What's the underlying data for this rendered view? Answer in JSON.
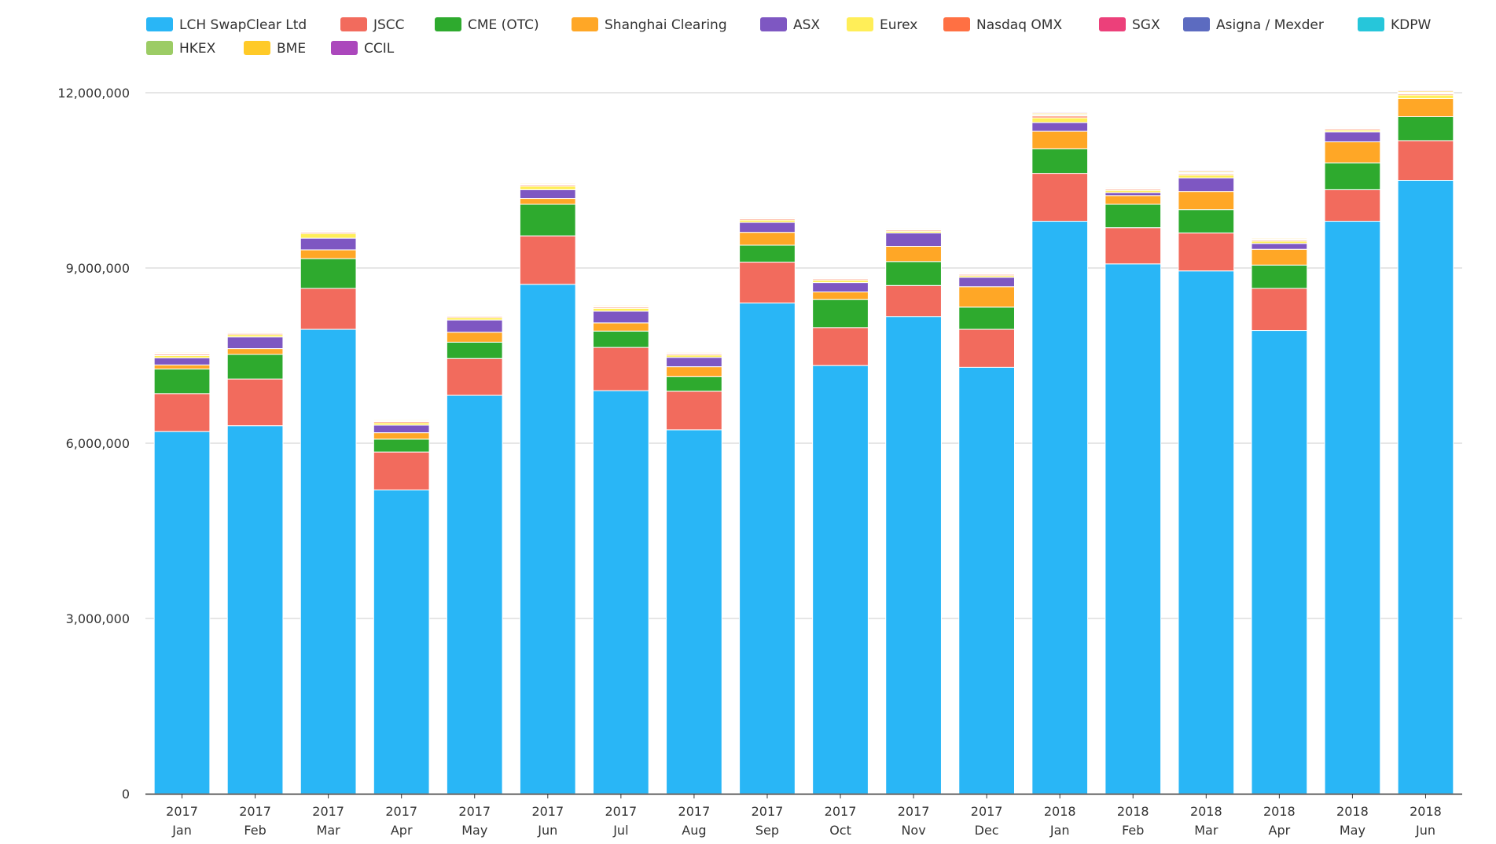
{
  "chart_data": {
    "type": "bar",
    "stacked": true,
    "title": "",
    "xlabel": "",
    "ylabel": "",
    "ylim": [
      0,
      12000000
    ],
    "yticks": [
      0,
      3000000,
      6000000,
      9000000,
      12000000
    ],
    "ytick_labels": [
      "0",
      "3,000,000",
      "6,000,000",
      "9,000,000",
      "12,000,000"
    ],
    "grid": "horizontal",
    "legend_position": "top",
    "categories": [
      {
        "year": "2017",
        "month": "Jan"
      },
      {
        "year": "2017",
        "month": "Feb"
      },
      {
        "year": "2017",
        "month": "Mar"
      },
      {
        "year": "2017",
        "month": "Apr"
      },
      {
        "year": "2017",
        "month": "May"
      },
      {
        "year": "2017",
        "month": "Jun"
      },
      {
        "year": "2017",
        "month": "Jul"
      },
      {
        "year": "2017",
        "month": "Aug"
      },
      {
        "year": "2017",
        "month": "Sep"
      },
      {
        "year": "2017",
        "month": "Oct"
      },
      {
        "year": "2017",
        "month": "Nov"
      },
      {
        "year": "2017",
        "month": "Dec"
      },
      {
        "year": "2018",
        "month": "Jan"
      },
      {
        "year": "2018",
        "month": "Feb"
      },
      {
        "year": "2018",
        "month": "Mar"
      },
      {
        "year": "2018",
        "month": "Apr"
      },
      {
        "year": "2018",
        "month": "May"
      },
      {
        "year": "2018",
        "month": "Jun"
      }
    ],
    "series": [
      {
        "name": "LCH SwapClear Ltd",
        "color": "#29b6f6",
        "values": [
          6200000,
          6300000,
          7950000,
          5200000,
          6820000,
          8720000,
          6900000,
          6230000,
          8400000,
          7330000,
          8170000,
          7300000,
          9800000,
          9070000,
          8950000,
          7930000,
          9800000,
          10500000
        ]
      },
      {
        "name": "JSCC",
        "color": "#f26b5d",
        "values": [
          650000,
          800000,
          700000,
          650000,
          630000,
          830000,
          740000,
          660000,
          700000,
          650000,
          530000,
          650000,
          820000,
          620000,
          650000,
          720000,
          540000,
          680000
        ]
      },
      {
        "name": "CME (OTC)",
        "color": "#2eaa2e",
        "values": [
          420000,
          420000,
          510000,
          220000,
          280000,
          540000,
          280000,
          250000,
          290000,
          480000,
          410000,
          380000,
          420000,
          400000,
          400000,
          400000,
          460000,
          410000
        ]
      },
      {
        "name": "Shanghai Clearing",
        "color": "#ffa726",
        "values": [
          70000,
          100000,
          150000,
          110000,
          170000,
          100000,
          140000,
          170000,
          220000,
          130000,
          260000,
          350000,
          300000,
          150000,
          310000,
          270000,
          360000,
          310000
        ]
      },
      {
        "name": "ASX",
        "color": "#7e57c2",
        "values": [
          120000,
          200000,
          200000,
          130000,
          210000,
          150000,
          200000,
          160000,
          170000,
          160000,
          230000,
          160000,
          150000,
          50000,
          230000,
          100000,
          170000,
          0
        ]
      },
      {
        "name": "Eurex",
        "color": "#ffee58",
        "values": [
          40000,
          40000,
          80000,
          40000,
          40000,
          60000,
          50000,
          40000,
          40000,
          40000,
          30000,
          30000,
          80000,
          40000,
          50000,
          40000,
          30000,
          60000
        ]
      },
      {
        "name": "Nasdaq OMX",
        "color": "#ff7043",
        "values": [
          20000,
          20000,
          20000,
          20000,
          20000,
          20000,
          20000,
          20000,
          20000,
          20000,
          20000,
          20000,
          30000,
          20000,
          20000,
          20000,
          20000,
          20000
        ]
      },
      {
        "name": "SGX",
        "color": "#ec407a",
        "values": [
          5000,
          5000,
          5000,
          5000,
          5000,
          5000,
          5000,
          5000,
          5000,
          5000,
          5000,
          5000,
          5000,
          5000,
          5000,
          5000,
          5000,
          5000
        ]
      },
      {
        "name": "Asigna / Mexder",
        "color": "#5c6bc0",
        "values": [
          5000,
          5000,
          5000,
          5000,
          5000,
          5000,
          5000,
          5000,
          5000,
          5000,
          5000,
          5000,
          5000,
          5000,
          5000,
          5000,
          5000,
          5000
        ]
      },
      {
        "name": "KDPW",
        "color": "#26c6da",
        "values": [
          3000,
          3000,
          3000,
          3000,
          3000,
          3000,
          3000,
          3000,
          3000,
          3000,
          3000,
          3000,
          3000,
          3000,
          3000,
          3000,
          3000,
          3000
        ]
      },
      {
        "name": "HKEX",
        "color": "#9ccc65",
        "values": [
          10000,
          10000,
          10000,
          10000,
          10000,
          10000,
          10000,
          10000,
          10000,
          10000,
          10000,
          10000,
          15000,
          10000,
          15000,
          10000,
          10000,
          15000
        ]
      },
      {
        "name": "BME",
        "color": "#ffca28",
        "values": [
          15000,
          15000,
          15000,
          15000,
          15000,
          15000,
          15000,
          15000,
          15000,
          15000,
          15000,
          15000,
          20000,
          15000,
          20000,
          15000,
          15000,
          20000
        ]
      },
      {
        "name": "CCIL",
        "color": "#ab47bc",
        "values": [
          10000,
          10000,
          10000,
          10000,
          10000,
          10000,
          10000,
          10000,
          10000,
          10000,
          10000,
          10000,
          15000,
          10000,
          15000,
          10000,
          10000,
          15000
        ]
      }
    ]
  }
}
